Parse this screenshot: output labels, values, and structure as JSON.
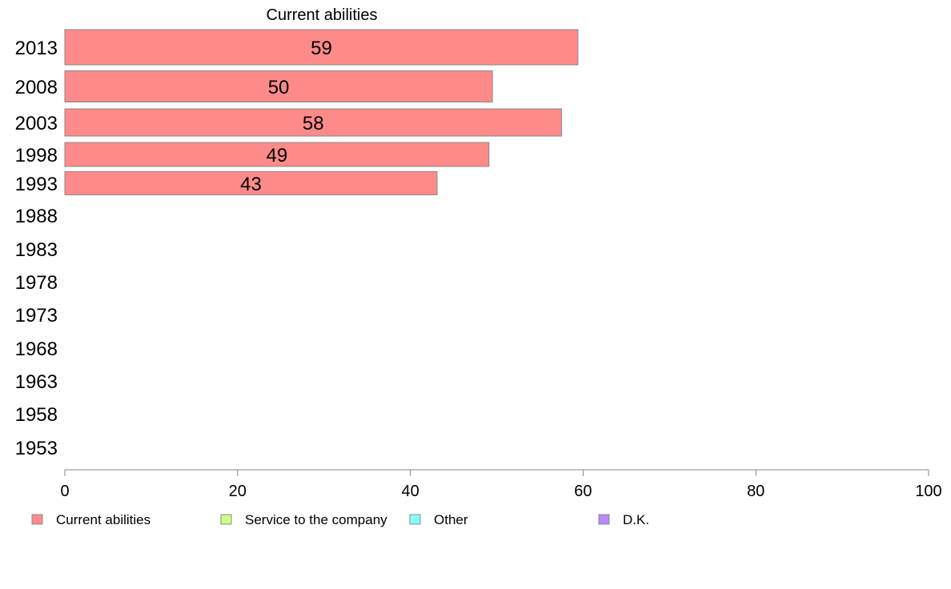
{
  "chart_data": {
    "type": "bar",
    "orientation": "horizontal",
    "subtitle": "Current abilities",
    "categories": [
      "2013",
      "2008",
      "2003",
      "1998",
      "1993",
      "1988",
      "1983",
      "1978",
      "1973",
      "1968",
      "1963",
      "1958",
      "1953"
    ],
    "series": [
      {
        "name": "Current abilities",
        "color": "#ff8a8a",
        "values": [
          59.4,
          49.5,
          57.5,
          49.1,
          43.1,
          null,
          null,
          null,
          null,
          null,
          null,
          null,
          null
        ]
      },
      {
        "name": "Service to the company",
        "color": "#ccff88",
        "values": [
          null,
          null,
          null,
          null,
          null,
          null,
          null,
          null,
          null,
          null,
          null,
          null,
          null
        ]
      },
      {
        "name": "Other",
        "color": "#88ffff",
        "values": [
          null,
          null,
          null,
          null,
          null,
          null,
          null,
          null,
          null,
          null,
          null,
          null,
          null
        ]
      },
      {
        "name": "D.K.",
        "color": "#bb88ff",
        "values": [
          null,
          null,
          null,
          null,
          null,
          null,
          null,
          null,
          null,
          null,
          null,
          null,
          null
        ]
      }
    ],
    "data_labels": [
      "59",
      "50",
      "58",
      "49",
      "43"
    ],
    "xlim": [
      0,
      100
    ],
    "xticks": [
      "0",
      "20",
      "40",
      "60",
      "80",
      "100"
    ],
    "grid": false,
    "legend_position": "bottom",
    "bar_border_color": "#888888",
    "axis_color": "#888888"
  }
}
